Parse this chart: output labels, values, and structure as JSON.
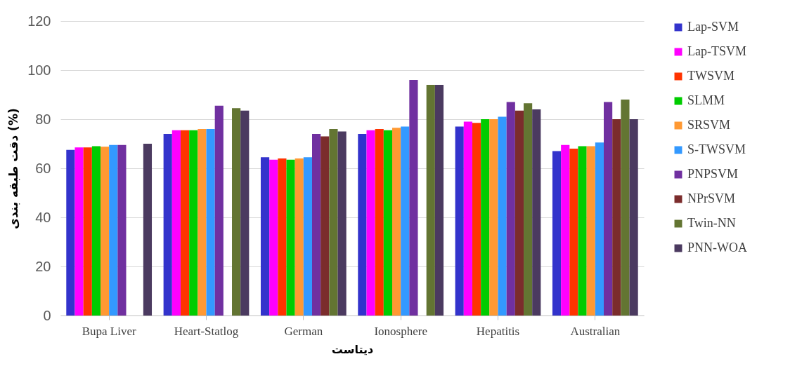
{
  "chart_data": {
    "type": "bar",
    "xlabel": "دیتاست",
    "ylabel": "دقت طبقه بندی (%)",
    "categories": [
      "Bupa Liver",
      "Heart-Statlog",
      "German",
      "Ionosphere",
      "Hepatitis",
      "Australian"
    ],
    "series": [
      {
        "name": "Lap-SVM",
        "color": "#3333cc",
        "values": [
          67.5,
          74,
          64.5,
          74,
          77,
          67
        ]
      },
      {
        "name": "Lap-TSVM",
        "color": "#ff00ff",
        "values": [
          68.5,
          75.5,
          63.5,
          75.5,
          79,
          69.5
        ]
      },
      {
        "name": "TWSVM",
        "color": "#ff3300",
        "values": [
          68.5,
          75.5,
          64,
          76,
          78.5,
          68
        ]
      },
      {
        "name": "SLMM",
        "color": "#00cc00",
        "values": [
          69,
          75.5,
          63.5,
          75.5,
          80,
          69
        ]
      },
      {
        "name": "SRSVM",
        "color": "#ff9933",
        "values": [
          68.8,
          76,
          64,
          76.5,
          80,
          69
        ]
      },
      {
        "name": "S-TWSVM",
        "color": "#3399ff",
        "values": [
          69.5,
          76,
          64.5,
          77,
          81,
          70.5
        ]
      },
      {
        "name": "PNPSVM",
        "color": "#7030a0",
        "values": [
          69.5,
          85.5,
          74,
          96,
          87,
          87
        ]
      },
      {
        "name": "NPrSVM",
        "color": "#7b2c2c",
        "values": [
          null,
          null,
          73,
          null,
          83.5,
          80
        ]
      },
      {
        "name": "Twin-NN",
        "color": "#637532",
        "values": [
          null,
          84.5,
          76,
          94,
          86.5,
          88
        ]
      },
      {
        "name": "PNN-WOA",
        "color": "#4b3a60",
        "values": [
          70,
          83.5,
          75,
          94,
          84,
          80
        ]
      }
    ],
    "ylim": [
      0,
      120
    ],
    "yticks": [
      0,
      20,
      40,
      60,
      80,
      100,
      120
    ],
    "grid": "y",
    "legend": "right"
  }
}
